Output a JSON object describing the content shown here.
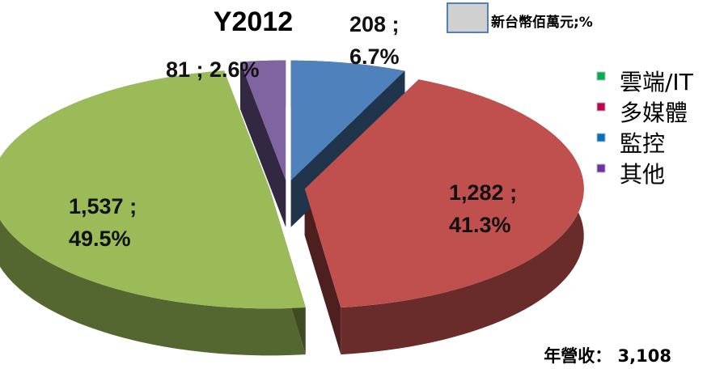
{
  "chart_data": {
    "type": "pie",
    "title": "Y2012",
    "categories": [
      "雲端/IT",
      "多媒體",
      "監控",
      "其他"
    ],
    "values": [
      1537,
      1282,
      208,
      81
    ],
    "value_labels": [
      "1,537 ; 49.5%",
      "1,282 ; 41.3%",
      "208 ; 6.7%",
      "81 ; 2.6%"
    ],
    "colors": [
      "#9bbb59",
      "#c0504d",
      "#4f81bd",
      "#8064a2"
    ],
    "legend_colors": [
      "#00b050",
      "#c00050",
      "#0070c0",
      "#7030a0"
    ],
    "legend": "right",
    "annotations": [
      "新台幣佰萬元;%",
      "年營收： 3,108"
    ]
  }
}
